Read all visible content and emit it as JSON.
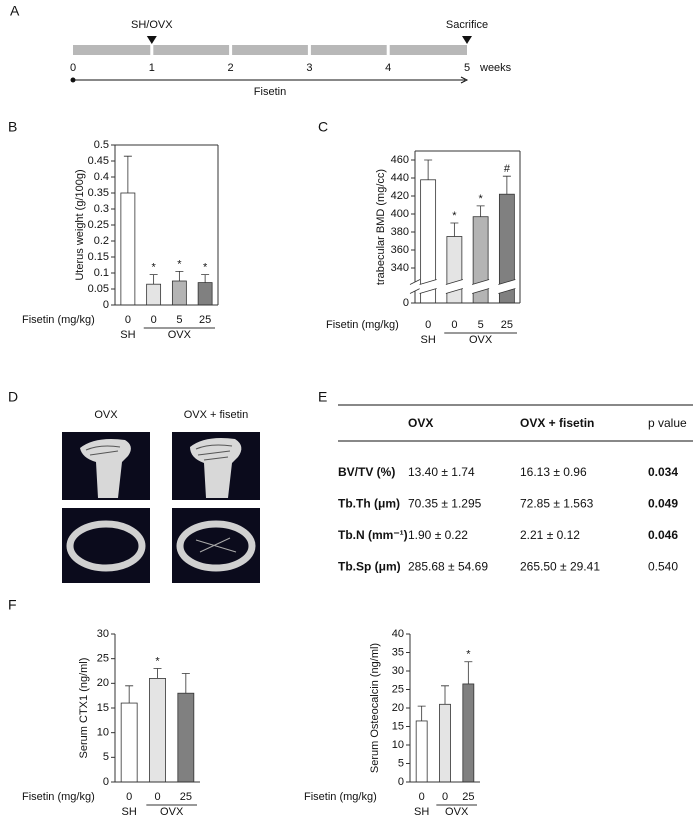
{
  "panels": [
    "A",
    "B",
    "C",
    "D",
    "E",
    "F"
  ],
  "timeline": {
    "ticks": [
      0,
      1,
      2,
      3,
      4,
      5
    ],
    "unit": "weeks",
    "events": [
      {
        "label": "SH/OVX",
        "week": 1
      },
      {
        "label": "Sacrifice",
        "week": 5
      }
    ],
    "treatment": "Fisetin"
  },
  "images": {
    "labels": [
      "OVX",
      "OVX + fisetin"
    ]
  },
  "table": {
    "columns": [
      "OVX",
      "OVX + fisetin",
      "p value"
    ],
    "rows": [
      [
        "BV/TV (%)",
        "13.40 ± 1.74",
        "16.13 ± 0.96",
        "0.034"
      ],
      [
        "Tb.Th (μm)",
        "70.35 ± 1.295",
        "72.85 ± 1.563",
        "0.049"
      ],
      [
        "Tb.N (mm⁻¹)",
        "1.90 ± 0.22",
        "2.21 ± 0.12",
        "0.046"
      ],
      [
        "Tb.Sp (μm)",
        "285.68 ± 54.69",
        "265.50 ± 29.41",
        "0.540"
      ]
    ],
    "bold_p": [
      true,
      true,
      true,
      false
    ]
  },
  "chart_data": [
    {
      "type": "bar",
      "ylabel": "Uterus weight (g/100g)",
      "xlabel": "Fisetin (mg/kg)",
      "groups": [
        {
          "name": "SH",
          "categories": [
            "0"
          ]
        },
        {
          "name": "OVX",
          "categories": [
            "0",
            "5",
            "25"
          ]
        }
      ],
      "values": [
        0.35,
        0.065,
        0.075,
        0.07
      ],
      "errors": [
        0.115,
        0.03,
        0.03,
        0.025
      ],
      "annotations": [
        null,
        "*",
        "*",
        "*"
      ],
      "colors": [
        "#ffffff",
        "#e4e4e4",
        "#b4b4b4",
        "#808080"
      ],
      "ylim": [
        0,
        0.5
      ],
      "yticks": [
        0,
        0.05,
        0.1,
        0.15,
        0.2,
        0.25,
        0.3,
        0.35,
        0.4,
        0.45,
        0.5
      ],
      "frame": true
    },
    {
      "type": "bar",
      "ylabel": "trabecular BMD (mg/cc)",
      "xlabel": "Fisetin (mg/kg)",
      "groups": [
        {
          "name": "SH",
          "categories": [
            "0"
          ]
        },
        {
          "name": "OVX",
          "categories": [
            "0",
            "5",
            "25"
          ]
        }
      ],
      "values": [
        438,
        375,
        397,
        422
      ],
      "errors": [
        22,
        15,
        12,
        20
      ],
      "annotations": [
        null,
        "*",
        "*",
        "#"
      ],
      "colors": [
        "#ffffff",
        "#e4e4e4",
        "#b4b4b4",
        "#808080"
      ],
      "ylim": [
        0,
        470
      ],
      "ybreak": [
        10,
        330
      ],
      "yticks": [
        0,
        340,
        360,
        380,
        400,
        420,
        440,
        460
      ],
      "frame": true
    },
    {
      "type": "bar",
      "ylabel": "Serum  CTX1 (ng/ml)",
      "xlabel": "Fisetin (mg/kg)",
      "groups": [
        {
          "name": "SH",
          "categories": [
            "0"
          ]
        },
        {
          "name": "OVX",
          "categories": [
            "0",
            "25"
          ]
        }
      ],
      "values": [
        16,
        21,
        18
      ],
      "errors": [
        3.5,
        2,
        4
      ],
      "annotations": [
        null,
        "*",
        null
      ],
      "colors": [
        "#ffffff",
        "#e4e4e4",
        "#808080"
      ],
      "ylim": [
        0,
        30
      ],
      "yticks": [
        0,
        5,
        10,
        15,
        20,
        25,
        30
      ],
      "frame": false
    },
    {
      "type": "bar",
      "ylabel": "Serum  Osteocalcin (ng/ml)",
      "xlabel": "Fisetin (mg/kg)",
      "groups": [
        {
          "name": "SH",
          "categories": [
            "0"
          ]
        },
        {
          "name": "OVX",
          "categories": [
            "0",
            "25"
          ]
        }
      ],
      "values": [
        16.5,
        21,
        26.5
      ],
      "errors": [
        4,
        5,
        6
      ],
      "annotations": [
        null,
        null,
        "*"
      ],
      "colors": [
        "#ffffff",
        "#e4e4e4",
        "#808080"
      ],
      "ylim": [
        0,
        40
      ],
      "yticks": [
        0,
        5,
        10,
        15,
        20,
        25,
        30,
        35,
        40
      ],
      "frame": false
    }
  ]
}
